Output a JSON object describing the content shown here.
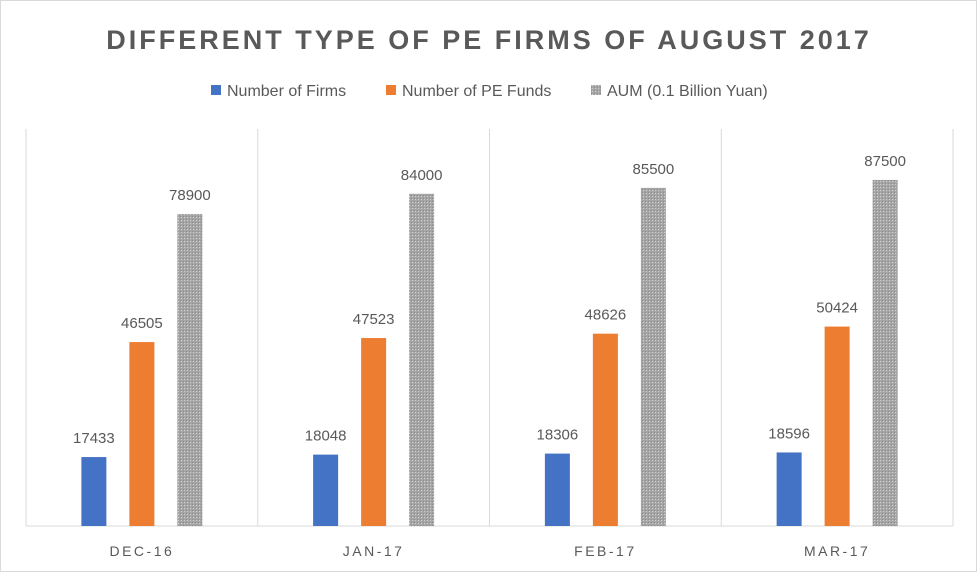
{
  "chart_data": {
    "type": "bar",
    "title": "DIFFERENT TYPE OF PE FIRMS OF AUGUST 2017",
    "categories": [
      "DEC-16",
      "JAN-17",
      "FEB-17",
      "MAR-17"
    ],
    "series": [
      {
        "name": "Number of Firms",
        "color": "#4472c4",
        "values": [
          17433,
          18048,
          18306,
          18596
        ]
      },
      {
        "name": "Number of PE Funds",
        "color": "#ed7d31",
        "values": [
          46505,
          47523,
          48626,
          50424
        ]
      },
      {
        "name": "AUM (0.1 Billion Yuan)",
        "color": "#a5a5a5",
        "values": [
          78900,
          84000,
          85500,
          87500
        ]
      }
    ],
    "ylim": [
      0,
      100000
    ],
    "legend": "top",
    "grid": "vertical category separators"
  }
}
